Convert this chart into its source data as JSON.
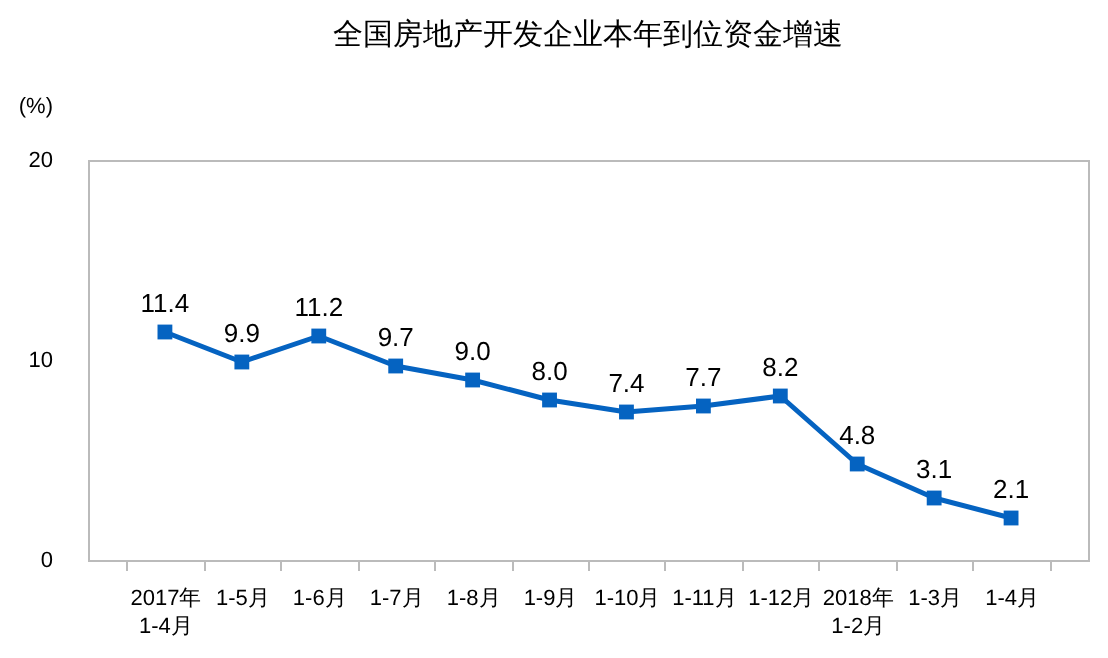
{
  "chart_data": {
    "type": "line",
    "title": "全国房地产开发企业本年到位资金增速",
    "ylabel": "(%)",
    "categories": [
      "2017年\n1-4月",
      "1-5月",
      "1-6月",
      "1-7月",
      "1-8月",
      "1-9月",
      "1-10月",
      "1-11月",
      "1-12月",
      "2018年\n1-2月",
      "1-3月",
      "1-4月"
    ],
    "series": [
      {
        "color": "#0563c1",
        "values": [
          11.4,
          9.9,
          11.2,
          9.7,
          9.0,
          8.0,
          7.4,
          7.7,
          8.2,
          4.8,
          3.1,
          2.1
        ],
        "value_labels": [
          "11.4",
          "9.9",
          "11.2",
          "9.7",
          "9.0",
          "8.0",
          "7.4",
          "7.7",
          "8.2",
          "4.8",
          "3.1",
          "2.1"
        ]
      }
    ],
    "ylim": [
      0,
      20
    ],
    "yticks": [
      0,
      10,
      20
    ],
    "grid": false,
    "marker": "square"
  }
}
